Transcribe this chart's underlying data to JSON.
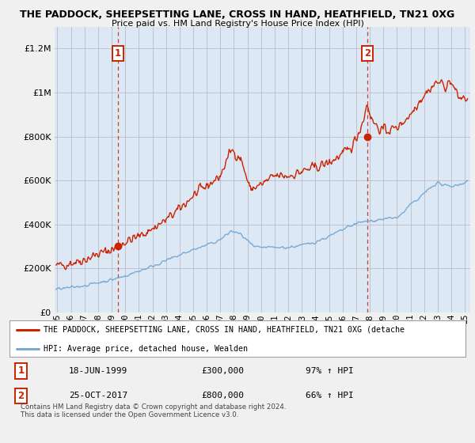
{
  "title_line1": "THE PADDOCK, SHEEPSETTING LANE, CROSS IN HAND, HEATHFIELD, TN21 0XG",
  "title_line2": "Price paid vs. HM Land Registry's House Price Index (HPI)",
  "legend_line1": "THE PADDOCK, SHEEPSETTING LANE, CROSS IN HAND, HEATHFIELD, TN21 0XG (detache",
  "legend_line2": "HPI: Average price, detached house, Wealden",
  "annotation1_label": "1",
  "annotation1_date": "18-JUN-1999",
  "annotation1_price": "£300,000",
  "annotation1_hpi": "97% ↑ HPI",
  "annotation2_label": "2",
  "annotation2_date": "25-OCT-2017",
  "annotation2_price": "£800,000",
  "annotation2_hpi": "66% ↑ HPI",
  "copyright": "Contains HM Land Registry data © Crown copyright and database right 2024.\nThis data is licensed under the Open Government Licence v3.0.",
  "red_color": "#cc2200",
  "blue_color": "#7aaad4",
  "plot_bg_color": "#dce9f5",
  "background_color": "#f0f0f0",
  "grid_color": "#bbbbcc",
  "ylim": [
    0,
    1300000
  ],
  "xlim_start": 1994.8,
  "xlim_end": 2025.4,
  "sale1_year": 1999.46,
  "sale1_price": 300000,
  "sale2_year": 2017.81,
  "sale2_price": 800000
}
